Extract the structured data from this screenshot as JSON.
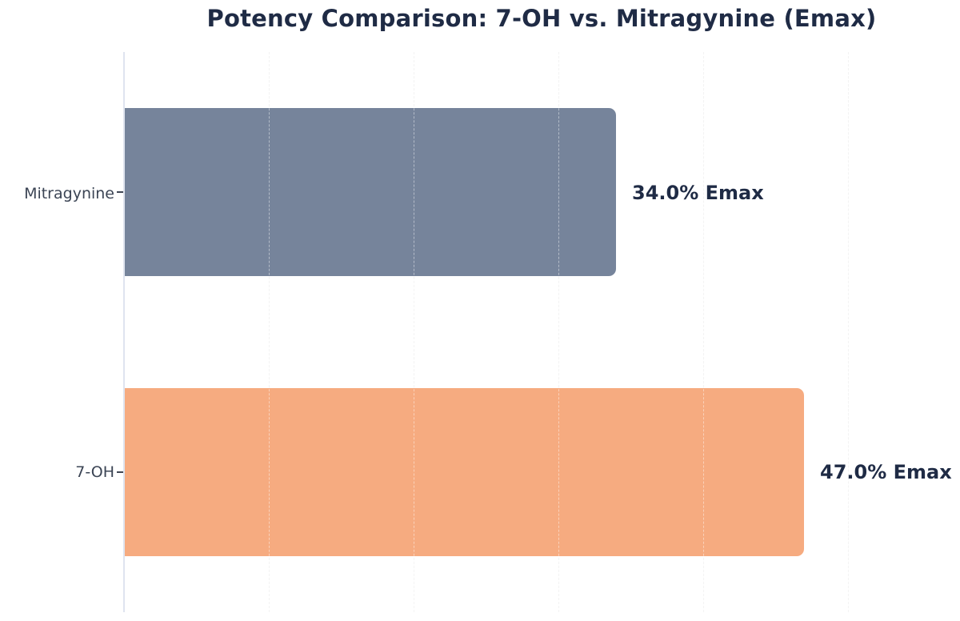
{
  "chart_data": {
    "type": "bar",
    "orientation": "horizontal",
    "title": "Potency Comparison: 7-OH vs. Mitragynine (Emax)",
    "categories": [
      "Mitragynine",
      "7-OH"
    ],
    "values": [
      34.0,
      47.0
    ],
    "value_labels": [
      "34.0% Emax",
      "47.0% Emax"
    ],
    "unit": "% Emax",
    "xlim": [
      0,
      57.7
    ],
    "x_gridlines": [
      10,
      20,
      30,
      40,
      50
    ],
    "grid_style": "dashed-vertical",
    "legend": "none",
    "bar_colors": [
      "#76849b",
      "#f6ab80"
    ]
  },
  "colors": {
    "background": "#ffffff",
    "title_text": "#1f2b45",
    "value_text": "#1f2b45",
    "category_text": "#3b4454",
    "axis_line": "#dfe4ef",
    "gridline": "#e9e9e9",
    "gridline_overlay": "rgba(255,255,255,0.45)",
    "tick": "#3f4654",
    "bar_mitragynine": "#76849b",
    "bar_7oh": "#f6ab80"
  }
}
